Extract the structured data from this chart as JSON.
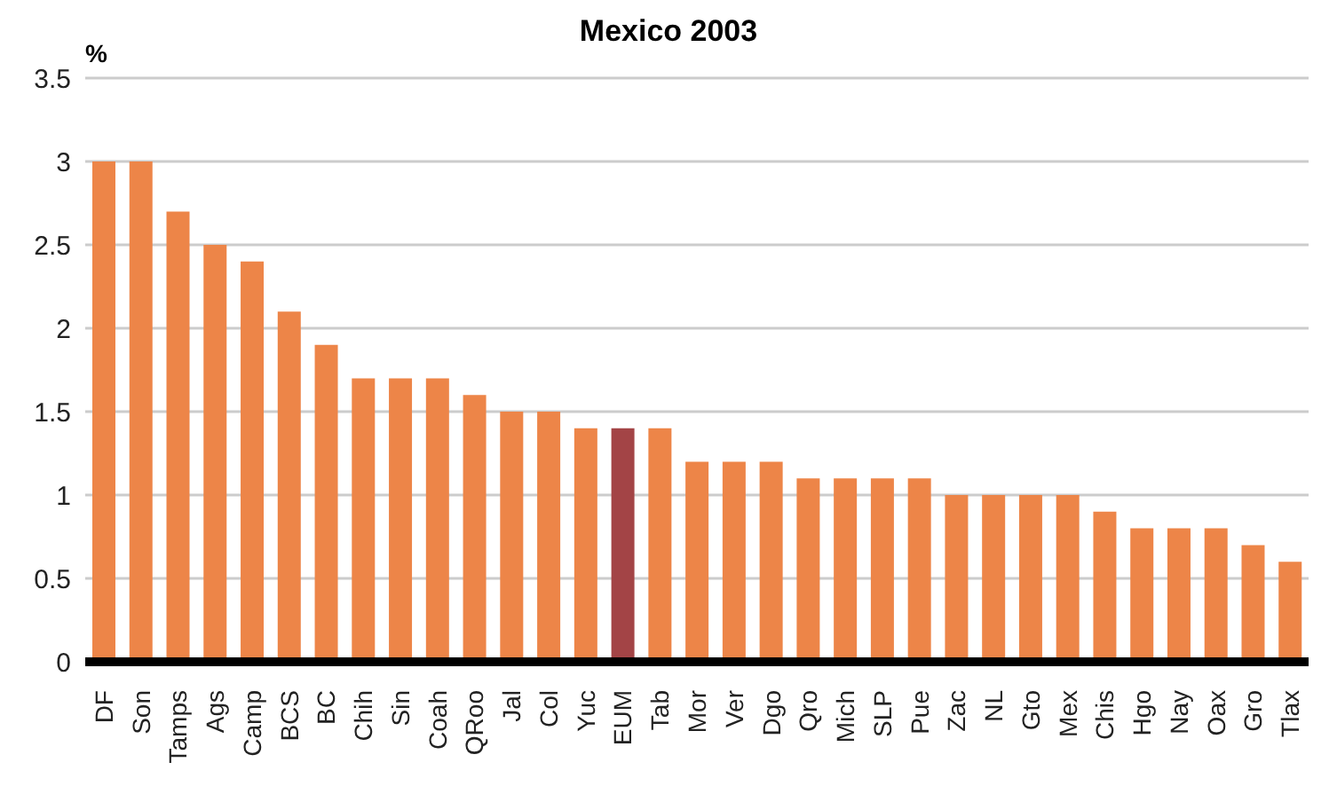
{
  "chart_data": {
    "type": "bar",
    "title": "Mexico 2003",
    "ylabel": "%",
    "categories": [
      "DF",
      "Son",
      "Tamps",
      "Ags",
      "Camp",
      "BCS",
      "BC",
      "Chih",
      "Sin",
      "Coah",
      "QRoo",
      "Jal",
      "Col",
      "Yuc",
      "EUM",
      "Tab",
      "Mor",
      "Ver",
      "Dgo",
      "Qro",
      "Mich",
      "SLP",
      "Pue",
      "Zac",
      "NL",
      "Gto",
      "Mex",
      "Chis",
      "Hgo",
      "Nay",
      "Oax",
      "Gro",
      "Tlax"
    ],
    "values": [
      3,
      3,
      2.7,
      2.5,
      2.4,
      2.1,
      1.9,
      1.7,
      1.7,
      1.7,
      1.6,
      1.5,
      1.5,
      1.4,
      1.4,
      1.4,
      1.2,
      1.2,
      1.2,
      1.1,
      1.1,
      1.1,
      1.1,
      1,
      1,
      1,
      1,
      0.9,
      0.8,
      0.8,
      0.8,
      0.7,
      0.6
    ],
    "colors": [
      "#ed8548",
      "#ed8548",
      "#ed8548",
      "#ed8548",
      "#ed8548",
      "#ed8548",
      "#ed8548",
      "#ed8548",
      "#ed8548",
      "#ed8548",
      "#ed8548",
      "#ed8548",
      "#ed8548",
      "#ed8548",
      "#a34446",
      "#ed8548",
      "#ed8548",
      "#ed8548",
      "#ed8548",
      "#ed8548",
      "#ed8548",
      "#ed8548",
      "#ed8548",
      "#ed8548",
      "#ed8548",
      "#ed8548",
      "#ed8548",
      "#ed8548",
      "#ed8548",
      "#ed8548",
      "#ed8548",
      "#ed8548",
      "#ed8548"
    ],
    "ylim": [
      0,
      3.5
    ],
    "yticks": [
      0,
      0.5,
      1,
      1.5,
      2,
      2.5,
      3,
      3.5
    ],
    "grid": "y"
  }
}
